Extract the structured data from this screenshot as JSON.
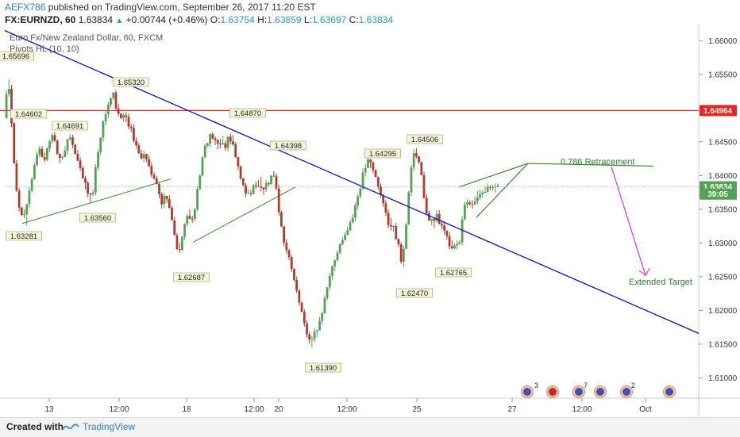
{
  "header": {
    "author": "AEFX786",
    "published_text": " published on TradingView.com, September 26, 2017 11:20 EST",
    "symbol": "FX:EURNZD, 60",
    "last": "1.63834",
    "change": "+0.00744 (+0.46%)",
    "o_label": "O:",
    "o_value": "1.63754",
    "h_label": "H:",
    "h_value": "1.63859",
    "l_label": "L:",
    "l_value": "1.63697",
    "c_label": "C:",
    "c_value": "1.63834"
  },
  "legend": {
    "series_title": "Euro Fx/New Zealand Dollar, 60, FXCM",
    "indicator": "Pivots HL (10, 10)"
  },
  "footer": {
    "created_with": "Created with",
    "brand": "TradingView"
  },
  "colors": {
    "bull": "#53a153",
    "bear": "#b03a2e",
    "trendline": "#1010cc",
    "resistance": "#ee2222",
    "support_lines": "#3a8a2a",
    "target_arrow": "#e040e0",
    "axis_text": "#333333"
  },
  "chart_data": {
    "type": "candlestick",
    "y_range": [
      1.607,
      1.6625
    ],
    "y_ticks": [
      "1.66000",
      "1.65500",
      "1.65000",
      "1.64500",
      "1.64000",
      "1.63500",
      "1.63000",
      "1.62500",
      "1.62000",
      "1.61500",
      "1.61000"
    ],
    "x_ticks": [
      "13",
      "12:00",
      "18",
      "12:00",
      "20",
      "12:00",
      "25",
      "27",
      "12:00",
      "Oct"
    ],
    "price_tags": [
      {
        "label": "1.64964",
        "value": 1.64964,
        "color": "#ee2222"
      },
      {
        "label": "1.63834",
        "value": 1.63834,
        "color": "#53a153"
      },
      {
        "label": "39:05",
        "value": 1.63725,
        "color": "#53a153"
      }
    ],
    "resistance_level": 1.64964,
    "pivots": [
      {
        "label": "1.65696",
        "kind": "high"
      },
      {
        "label": "1.64602",
        "kind": "high"
      },
      {
        "label": "1.64691",
        "kind": "high"
      },
      {
        "label": "1.65320",
        "kind": "high"
      },
      {
        "label": "1.64870",
        "kind": "high"
      },
      {
        "label": "1.64398",
        "kind": "high"
      },
      {
        "label": "1.64295",
        "kind": "high"
      },
      {
        "label": "1.64506",
        "kind": "high"
      },
      {
        "label": "1.63281",
        "kind": "low"
      },
      {
        "label": "1.63560",
        "kind": "low"
      },
      {
        "label": "1.62687",
        "kind": "low"
      },
      {
        "label": "1.61390",
        "kind": "low"
      },
      {
        "label": "1.62470",
        "kind": "low"
      },
      {
        "label": "1.62765",
        "kind": "low"
      }
    ],
    "annotations": [
      {
        "text": "0.786 Retracement"
      },
      {
        "text": "Extended Target"
      }
    ],
    "path_points": [
      [
        0,
        1.6485
      ],
      [
        3,
        1.6545
      ],
      [
        6,
        1.652
      ],
      [
        9,
        1.6455
      ],
      [
        12,
        1.6395
      ],
      [
        16,
        1.636
      ],
      [
        20,
        1.6345
      ],
      [
        24,
        1.6335
      ],
      [
        28,
        1.637
      ],
      [
        32,
        1.6398
      ],
      [
        36,
        1.6425
      ],
      [
        40,
        1.6445
      ],
      [
        44,
        1.643
      ],
      [
        48,
        1.6425
      ],
      [
        52,
        1.645
      ],
      [
        56,
        1.6465
      ],
      [
        60,
        1.6445
      ],
      [
        64,
        1.642
      ],
      [
        68,
        1.643
      ],
      [
        72,
        1.6445
      ],
      [
        76,
        1.6455
      ],
      [
        80,
        1.6445
      ],
      [
        84,
        1.643
      ],
      [
        88,
        1.641
      ],
      [
        92,
        1.6395
      ],
      [
        96,
        1.638
      ],
      [
        100,
        1.6365
      ],
      [
        104,
        1.638
      ],
      [
        108,
        1.642
      ],
      [
        112,
        1.6455
      ],
      [
        116,
        1.648
      ],
      [
        120,
        1.65
      ],
      [
        124,
        1.6515
      ],
      [
        128,
        1.652
      ],
      [
        132,
        1.65
      ],
      [
        136,
        1.6485
      ],
      [
        140,
        1.649
      ],
      [
        144,
        1.648
      ],
      [
        148,
        1.647
      ],
      [
        152,
        1.6455
      ],
      [
        156,
        1.644
      ],
      [
        160,
        1.6425
      ],
      [
        164,
        1.643
      ],
      [
        168,
        1.642
      ],
      [
        172,
        1.64
      ],
      [
        176,
        1.6395
      ],
      [
        180,
        1.638
      ],
      [
        184,
        1.6355
      ],
      [
        188,
        1.637
      ],
      [
        192,
        1.636
      ],
      [
        196,
        1.6345
      ],
      [
        200,
        1.6315
      ],
      [
        204,
        1.629
      ],
      [
        208,
        1.63
      ],
      [
        212,
        1.633
      ],
      [
        216,
        1.6345
      ],
      [
        220,
        1.633
      ],
      [
        224,
        1.635
      ],
      [
        228,
        1.639
      ],
      [
        232,
        1.642
      ],
      [
        236,
        1.6445
      ],
      [
        240,
        1.6455
      ],
      [
        244,
        1.646
      ],
      [
        248,
        1.645
      ],
      [
        252,
        1.6445
      ],
      [
        256,
        1.645
      ],
      [
        260,
        1.6445
      ],
      [
        264,
        1.6455
      ],
      [
        268,
        1.645
      ],
      [
        272,
        1.643
      ],
      [
        276,
        1.6405
      ],
      [
        280,
        1.639
      ],
      [
        284,
        1.637
      ],
      [
        288,
        1.6375
      ],
      [
        292,
        1.638
      ],
      [
        296,
        1.6385
      ],
      [
        300,
        1.639
      ],
      [
        304,
        1.638
      ],
      [
        308,
        1.6385
      ],
      [
        312,
        1.6395
      ],
      [
        316,
        1.6405
      ],
      [
        320,
        1.638
      ],
      [
        324,
        1.634
      ],
      [
        328,
        1.631
      ],
      [
        332,
        1.629
      ],
      [
        336,
        1.627
      ],
      [
        340,
        1.6245
      ],
      [
        344,
        1.6235
      ],
      [
        348,
        1.621
      ],
      [
        352,
        1.619
      ],
      [
        356,
        1.617
      ],
      [
        360,
        1.6155
      ],
      [
        364,
        1.616
      ],
      [
        368,
        1.6175
      ],
      [
        372,
        1.619
      ],
      [
        376,
        1.621
      ],
      [
        380,
        1.623
      ],
      [
        384,
        1.6255
      ],
      [
        388,
        1.627
      ],
      [
        392,
        1.629
      ],
      [
        396,
        1.6305
      ],
      [
        400,
        1.631
      ],
      [
        404,
        1.632
      ],
      [
        408,
        1.6335
      ],
      [
        412,
        1.635
      ],
      [
        416,
        1.637
      ],
      [
        420,
        1.639
      ],
      [
        424,
        1.641
      ],
      [
        428,
        1.642
      ],
      [
        432,
        1.6415
      ],
      [
        436,
        1.64
      ],
      [
        440,
        1.6385
      ],
      [
        444,
        1.637
      ],
      [
        448,
        1.6345
      ],
      [
        452,
        1.6325
      ],
      [
        456,
        1.633
      ],
      [
        460,
        1.6315
      ],
      [
        464,
        1.63
      ],
      [
        468,
        1.627
      ],
      [
        472,
        1.631
      ],
      [
        476,
        1.638
      ],
      [
        480,
        1.642
      ],
      [
        484,
        1.6438
      ],
      [
        488,
        1.642
      ],
      [
        492,
        1.639
      ],
      [
        496,
        1.635
      ],
      [
        500,
        1.6335
      ],
      [
        504,
        1.633
      ],
      [
        508,
        1.634
      ],
      [
        512,
        1.633
      ],
      [
        516,
        1.632
      ],
      [
        520,
        1.631
      ],
      [
        524,
        1.63
      ],
      [
        528,
        1.6295
      ],
      [
        532,
        1.63
      ],
      [
        536,
        1.6305
      ],
      [
        540,
        1.6345
      ],
      [
        544,
        1.6365
      ],
      [
        548,
        1.636
      ],
      [
        552,
        1.6355
      ],
      [
        556,
        1.637
      ],
      [
        560,
        1.6375
      ],
      [
        564,
        1.638
      ],
      [
        568,
        1.6378
      ],
      [
        572,
        1.6382
      ],
      [
        576,
        1.638
      ],
      [
        580,
        1.6383
      ]
    ]
  }
}
